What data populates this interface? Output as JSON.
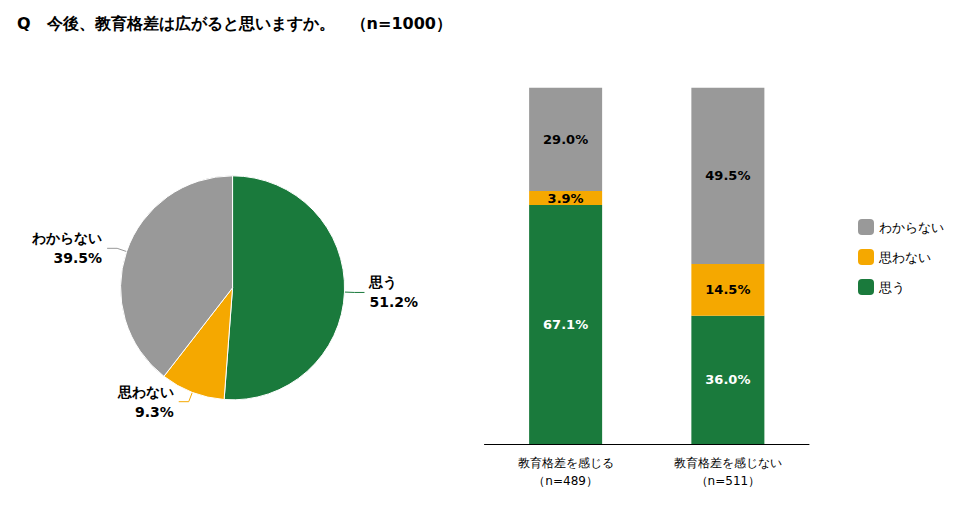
{
  "chart_data": [
    {
      "type": "pie",
      "title": "Q　今後、教育格差は広がると思いますか。　（n=1000）",
      "categories": [
        "思う",
        "思わない",
        "わからない"
      ],
      "values": [
        51.2,
        9.3,
        39.5
      ],
      "value_labels": [
        "51.2%",
        "9.3%",
        "39.5%"
      ],
      "colors": [
        "#1a7a3c",
        "#f5a800",
        "#999999"
      ],
      "data_labels": true
    },
    {
      "type": "bar",
      "categories": [
        "教育格差を感じる\n（n=489）",
        "教育格差を感じない\n（n=511）"
      ],
      "series": [
        {
          "name": "思う",
          "color": "#1a7a3c",
          "values": [
            67.1,
            36.0
          ],
          "value_labels": [
            "67.1%",
            "36.0%"
          ]
        },
        {
          "name": "思わない",
          "color": "#f5a800",
          "values": [
            3.9,
            14.5
          ],
          "value_labels": [
            "3.9%",
            "14.5%"
          ]
        },
        {
          "name": "わからない",
          "color": "#999999",
          "values": [
            29.0,
            49.5
          ],
          "value_labels": [
            "29.0%",
            "49.5%"
          ]
        }
      ],
      "stacked": true,
      "data_labels": true,
      "ylim": [
        0,
        105
      ],
      "legend": "right",
      "tick_labels": "x",
      "grid": false
    }
  ]
}
